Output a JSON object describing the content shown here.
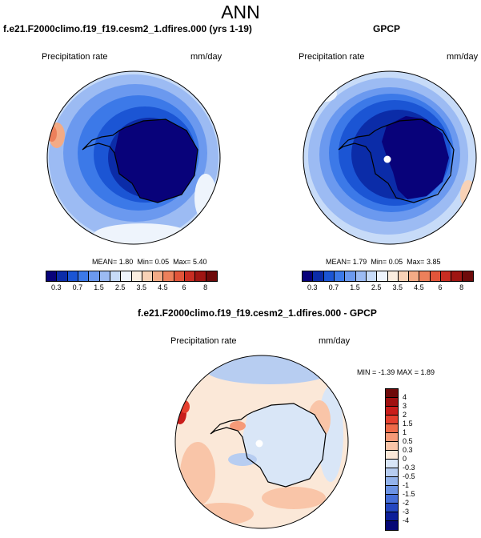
{
  "main_title": "ANN",
  "panels": {
    "model": {
      "title": "f.e21.F2000climo.f19_f19.cesm2_1.dfires.000 (yrs 1-19)",
      "var_label": "Precipitation rate",
      "units": "mm/day",
      "stats": {
        "mean_label": "MEAN=",
        "mean": "1.80",
        "min_label": "Min=",
        "min": "0.05",
        "max_label": "Max=",
        "max": "5.40"
      }
    },
    "obs": {
      "title": "GPCP",
      "var_label": "Precipitation rate",
      "units": "mm/day",
      "stats": {
        "mean_label": "MEAN=",
        "mean": "1.79",
        "min_label": "Min=",
        "min": "0.05",
        "max_label": "Max=",
        "max": "3.85"
      }
    },
    "diff": {
      "title": "f.e21.F2000climo.f19_f19.cesm2_1.dfires.000 - GPCP",
      "var_label": "Precipitation rate",
      "units": "mm/day",
      "stats_text": "MIN = -1.39 MAX = 1.89"
    }
  },
  "colorbar_abs": {
    "colors": [
      "#08027a",
      "#0b2ca8",
      "#1b55d4",
      "#3c79e8",
      "#6b99ef",
      "#9cbbf3",
      "#c7dbf8",
      "#eef4fc",
      "#fbeee0",
      "#f8d2b6",
      "#f3ab86",
      "#ed805b",
      "#e2553a",
      "#c82d22",
      "#9f1512",
      "#6e0a0a"
    ],
    "tick_labels": [
      "0.3",
      "0.7",
      "1.5",
      "2.5",
      "3.5",
      "4.5",
      "6",
      "8"
    ]
  },
  "colorbar_diff": {
    "colors": [
      "#6e0a0a",
      "#a01010",
      "#c91d1b",
      "#e5402f",
      "#ef6b4a",
      "#f69a78",
      "#f9c5a8",
      "#fbe8d8",
      "#d9e6f7",
      "#b7cdf1",
      "#93b3ec",
      "#6c93e4",
      "#466fd8",
      "#2447c0",
      "#0d1f99",
      "#050775"
    ],
    "tick_labels": [
      "4",
      "3",
      "2",
      "1.5",
      "1",
      "0.5",
      "0.3",
      "0",
      "-0.3",
      "-0.5",
      "-1",
      "-1.5",
      "-2",
      "-3",
      "-4"
    ]
  }
}
